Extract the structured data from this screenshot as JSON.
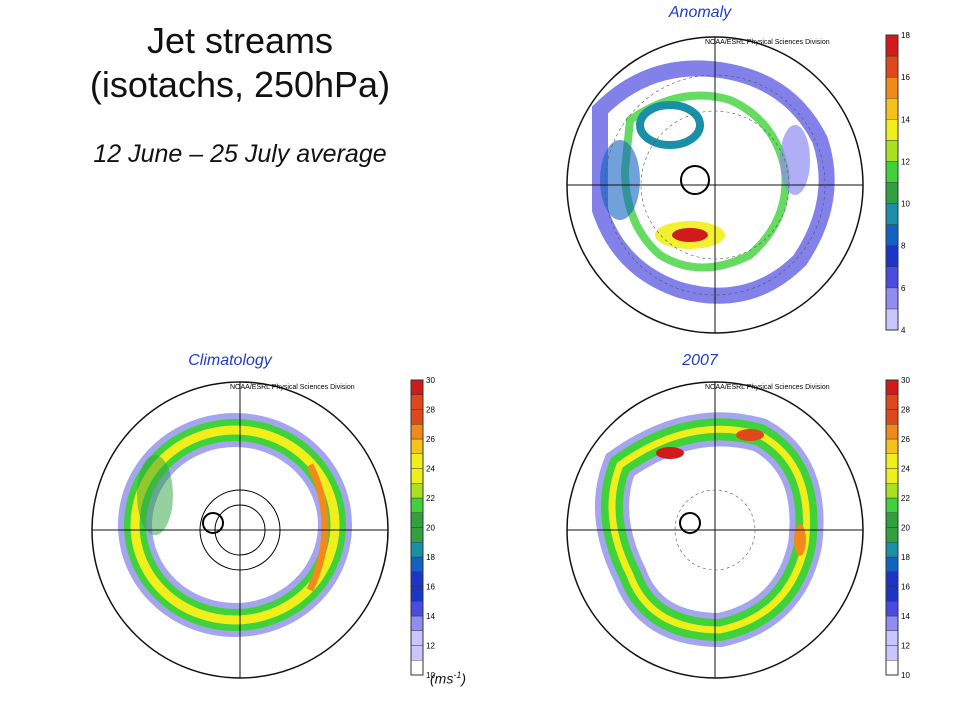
{
  "title_line1": "Jet streams",
  "title_line2": "(isotachs, 250hPa)",
  "subtitle": "12 June – 25 July average",
  "units": {
    "base": "(ms",
    "exp": "-1",
    "close": ")"
  },
  "credit": "NOAA/ESRL Physical Sciences Division",
  "panels": {
    "anomaly": {
      "label": "Anomaly",
      "ticks": [
        4,
        6,
        8,
        10,
        12,
        14,
        16,
        18
      ],
      "scale_min": 4,
      "scale_max": 18
    },
    "climatology": {
      "label": "Climatology",
      "ticks": [
        10,
        12,
        14,
        16,
        18,
        20,
        22,
        24,
        26,
        28,
        30
      ],
      "scale_min": 10,
      "scale_max": 30
    },
    "y2007": {
      "label": "2007",
      "ticks": [
        10,
        12,
        14,
        16,
        18,
        20,
        22,
        24,
        26,
        28,
        30
      ],
      "scale_min": 10,
      "scale_max": 30
    }
  },
  "colors": {
    "palette": [
      "#ffffff",
      "#c9c6ff",
      "#8f8cf2",
      "#4b4be0",
      "#1c34c8",
      "#1262c2",
      "#1a90a8",
      "#2fa13f",
      "#3fd23a",
      "#a9e020",
      "#f0ef1c",
      "#f5c21b",
      "#f08a1a",
      "#e0481a",
      "#d11a1a"
    ],
    "title": "#111111",
    "label": "#1f3cc6"
  }
}
